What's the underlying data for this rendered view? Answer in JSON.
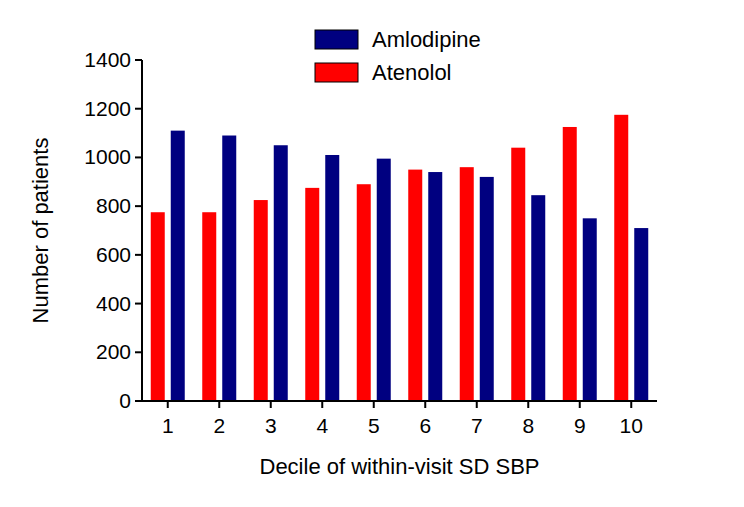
{
  "chart_data": {
    "type": "bar",
    "x_label": "Decile of within-visit SD SBP",
    "y_label": "Number of patients",
    "categories": [
      "1",
      "2",
      "3",
      "4",
      "5",
      "6",
      "7",
      "8",
      "9",
      "10"
    ],
    "series": [
      {
        "name": "Amlodipine",
        "color": "#000080",
        "values": [
          1110,
          1090,
          1050,
          1010,
          995,
          940,
          920,
          845,
          750,
          710
        ]
      },
      {
        "name": "Atenolol",
        "color": "#ff0000",
        "values": [
          775,
          775,
          825,
          875,
          890,
          950,
          960,
          1040,
          1125,
          1175
        ]
      }
    ],
    "ylim": [
      0,
      1400
    ],
    "yticks": [
      0,
      200,
      400,
      600,
      800,
      1000,
      1200,
      1400
    ],
    "grid": false,
    "legend": "top"
  }
}
